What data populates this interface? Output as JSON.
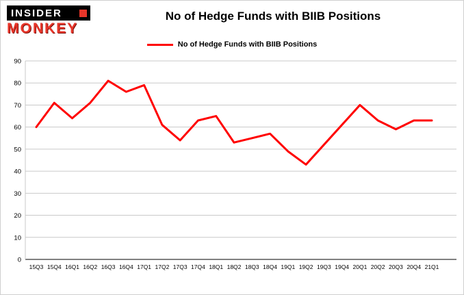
{
  "logo": {
    "line1": "INSIDER",
    "line2": "MONKEY",
    "accent_color": "#e8362a"
  },
  "header": {
    "title": "No of Hedge Funds with BIIB Positions"
  },
  "legend": {
    "label": "No of Hedge Funds with BIIB Positions",
    "color": "#ff0000"
  },
  "colors": {
    "series_line": "#ff0000",
    "gridline": "#c9c9c9",
    "axis_line": "#000000",
    "tick_text": "#000000",
    "background": "#ffffff"
  },
  "chart_data": {
    "type": "line",
    "title": "No of Hedge Funds with BIIB Positions",
    "xlabel": "",
    "ylabel": "",
    "ylim": [
      0,
      90
    ],
    "ytick_step": 10,
    "grid": true,
    "legend_position": "top",
    "categories": [
      "15Q3",
      "15Q4",
      "16Q1",
      "16Q2",
      "16Q3",
      "16Q4",
      "17Q1",
      "17Q2",
      "17Q3",
      "17Q4",
      "18Q1",
      "18Q2",
      "18Q3",
      "18Q4",
      "19Q1",
      "19Q2",
      "19Q3",
      "19Q4",
      "20Q1",
      "20Q2",
      "20Q3",
      "20Q4",
      "21Q1"
    ],
    "series": [
      {
        "name": "No of Hedge Funds with BIIB Positions",
        "color": "#ff0000",
        "values": [
          60,
          71,
          64,
          71,
          81,
          76,
          79,
          61,
          54,
          63,
          65,
          53,
          55,
          57,
          49,
          43,
          52,
          61,
          70,
          63,
          59,
          63,
          63
        ]
      }
    ]
  }
}
